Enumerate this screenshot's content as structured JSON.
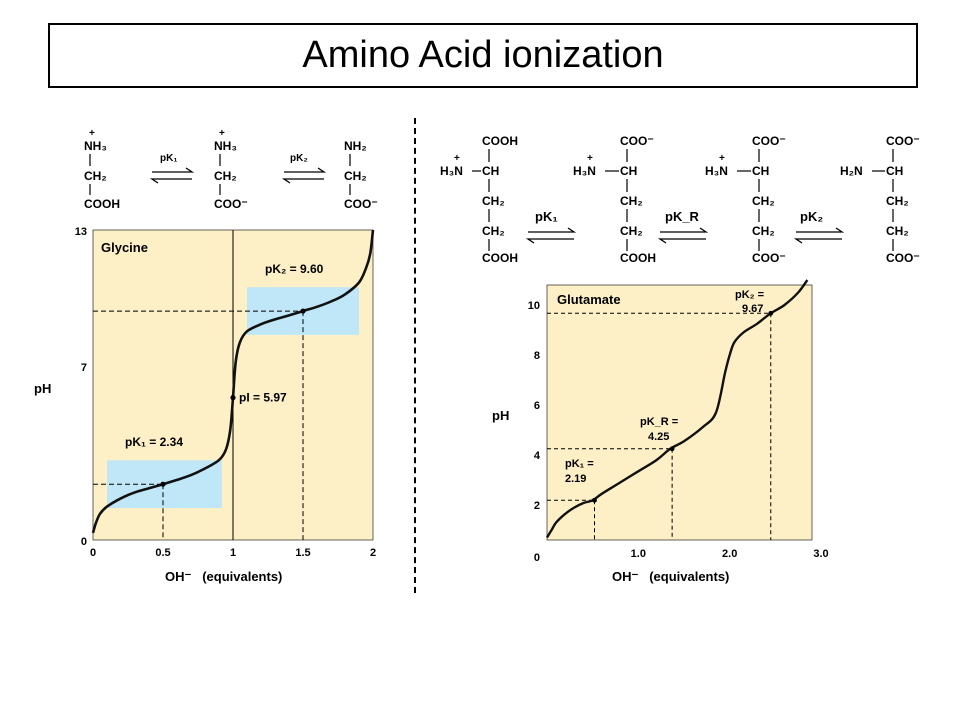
{
  "title": "Amino Acid ionization",
  "colors": {
    "panel_bg": "#fdefc6",
    "highlight": "#bfe7f7",
    "curve": "#111111"
  },
  "glycine": {
    "forms": [
      {
        "top": "NH₃",
        "charge": "+",
        "mid": "CH₂",
        "bottom": "COOH"
      },
      {
        "top": "NH₃",
        "charge": "+",
        "mid": "CH₂",
        "bottom": "COO⁻"
      },
      {
        "top": "NH₂",
        "charge": "",
        "mid": "CH₂",
        "bottom": "COO⁻"
      }
    ],
    "arrow_labels": [
      "pK₁",
      "pK₂"
    ]
  },
  "glutamate": {
    "forms": [
      {
        "top": "COOH",
        "charge": "+",
        "amino": "H₃N",
        "ca": "CH",
        "side1": "CH₂",
        "side2": "CH₂",
        "bottom": "COOH"
      },
      {
        "top": "COO⁻",
        "charge": "+",
        "amino": "H₃N",
        "ca": "CH",
        "side1": "CH₂",
        "side2": "CH₂",
        "bottom": "COOH"
      },
      {
        "top": "COO⁻",
        "charge": "+",
        "amino": "H₃N",
        "ca": "CH",
        "side1": "CH₂",
        "side2": "CH₂",
        "bottom": "COO⁻"
      },
      {
        "top": "COO⁻",
        "charge": "",
        "amino": "H₂N",
        "ca": "CH",
        "side1": "CH₂",
        "side2": "CH₂",
        "bottom": "COO⁻"
      }
    ],
    "arrow_labels": [
      "pK₁",
      "pK_R",
      "pK₂"
    ]
  },
  "chart_data": [
    {
      "type": "line",
      "panel_label": "Glycine",
      "xlabel": "OH⁻   (equivalents)",
      "ylabel": "pH",
      "xlim": [
        0,
        2
      ],
      "ylim": [
        0,
        13
      ],
      "xticks": [
        "0",
        "0.5",
        "1",
        "1.5",
        "2"
      ],
      "yticks": [
        "0",
        "7",
        "13"
      ],
      "x": [
        0,
        0.02,
        0.05,
        0.1,
        0.2,
        0.3,
        0.4,
        0.5,
        0.6,
        0.7,
        0.8,
        0.9,
        0.95,
        0.98,
        1.0,
        1.02,
        1.05,
        1.1,
        1.2,
        1.3,
        1.4,
        1.5,
        1.6,
        1.7,
        1.8,
        1.9,
        1.95,
        1.98,
        2.0
      ],
      "y": [
        0.3,
        0.7,
        1.1,
        1.4,
        1.75,
        2.0,
        2.17,
        2.34,
        2.52,
        2.72,
        3.0,
        3.35,
        3.8,
        4.6,
        5.97,
        7.5,
        8.3,
        8.75,
        9.05,
        9.25,
        9.42,
        9.6,
        9.78,
        10.0,
        10.3,
        10.8,
        11.4,
        12.0,
        13.0
      ],
      "annotations": [
        {
          "label": "pK₁ = 2.34",
          "x": 0.5,
          "y": 2.34
        },
        {
          "label": "pI = 5.97",
          "x": 1.0,
          "y": 5.97
        },
        {
          "label": "pK₂ = 9.60",
          "x": 1.5,
          "y": 9.6
        }
      ],
      "buffer_regions": [
        {
          "x": [
            0.1,
            0.92
          ],
          "y": [
            1.34,
            3.34
          ]
        },
        {
          "x": [
            1.1,
            1.9
          ],
          "y": [
            8.6,
            10.6
          ]
        }
      ]
    },
    {
      "type": "line",
      "panel_label": "Glutamate",
      "xlabel": "OH⁻   (equivalents)",
      "ylabel": "pH",
      "xlim": [
        0,
        3
      ],
      "ylim": [
        0,
        11
      ],
      "xticks": [
        "0",
        "1.0",
        "2.0",
        "3.0"
      ],
      "yticks": [
        "2",
        "4",
        "6",
        "8",
        "10"
      ],
      "x": [
        0,
        0.05,
        0.1,
        0.2,
        0.3,
        0.4,
        0.5,
        0.6,
        0.8,
        1.0,
        1.2,
        1.35,
        1.5,
        1.7,
        1.85,
        1.95,
        2.0,
        2.05,
        2.15,
        2.3,
        2.45,
        2.6,
        2.75,
        2.85
      ],
      "y": [
        0.7,
        1.0,
        1.3,
        1.65,
        1.9,
        2.08,
        2.19,
        2.45,
        2.9,
        3.35,
        3.8,
        4.25,
        4.55,
        5.1,
        5.7,
        7.3,
        8.0,
        8.5,
        8.9,
        9.25,
        9.67,
        10.0,
        10.5,
        11.0
      ],
      "annotations": [
        {
          "label": "pK₁ =",
          "value": "2.19",
          "x": 0.52,
          "y": 2.19
        },
        {
          "label": "pK_R =",
          "value": "4.25",
          "x": 1.37,
          "y": 4.25
        },
        {
          "label": "pK₂ =",
          "value": "9.67",
          "x": 2.45,
          "y": 9.67
        }
      ]
    }
  ]
}
